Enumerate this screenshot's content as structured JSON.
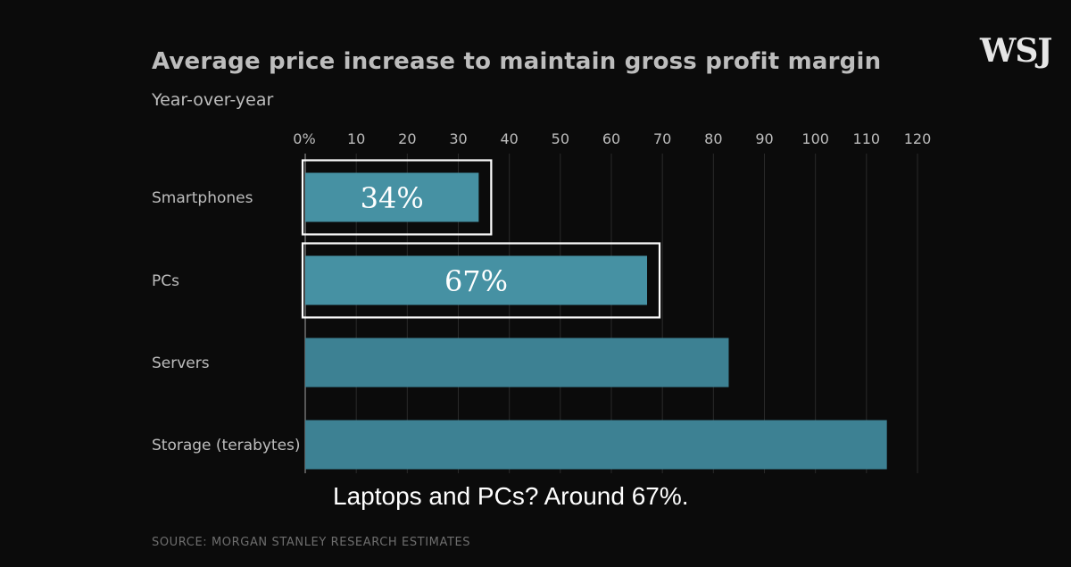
{
  "brand": {
    "logo_text": "WSJ"
  },
  "subtitle_caption": "Laptops and PCs? Around 67%.",
  "colors": {
    "background": "#0b0b0b",
    "bar": "#3d8193",
    "bar_highlight": "#4691a3",
    "highlight_box": "#ffffff",
    "grid": "#2a2a2a",
    "text": "#bdbdbd"
  },
  "chart_data": {
    "type": "bar",
    "orientation": "horizontal",
    "title": "Average price increase to maintain gross profit margin",
    "subtitle": "Year-over-year",
    "source": "SOURCE: MORGAN STANLEY RESEARCH ESTIMATES",
    "categories": [
      "Smartphones",
      "PCs",
      "Servers",
      "Storage (terabytes)"
    ],
    "values": [
      34,
      67,
      83,
      114
    ],
    "data_labels": [
      "34%",
      "67%",
      "",
      ""
    ],
    "highlighted": [
      "Smartphones",
      "PCs"
    ],
    "xlim": [
      0,
      120
    ],
    "x_ticks": [
      0,
      10,
      20,
      30,
      40,
      50,
      60,
      70,
      80,
      90,
      100,
      110,
      120
    ],
    "x_tick_labels": [
      "0%",
      "10",
      "20",
      "30",
      "40",
      "50",
      "60",
      "70",
      "80",
      "90",
      "100",
      "110",
      "120"
    ],
    "grid": true,
    "legend": "none"
  }
}
